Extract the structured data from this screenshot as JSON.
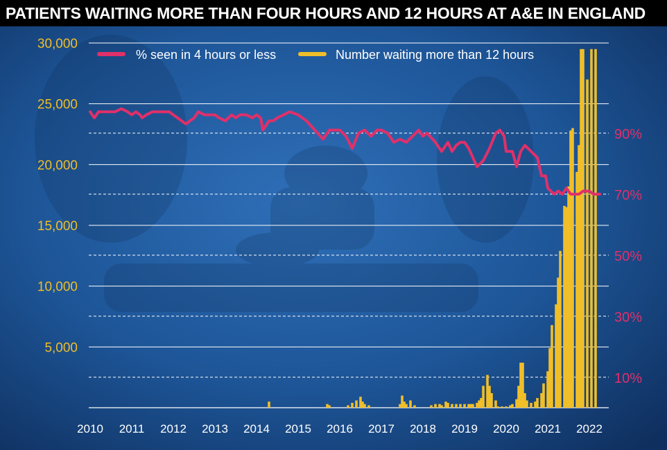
{
  "title": "PATIENTS WAITING MORE THAN FOUR HOURS AND 12 HOURS AT A&E IN ENGLAND",
  "colors": {
    "line": "#e0306a",
    "bars": "#f0be28",
    "left_axis": "#f0be28",
    "right_axis": "#e0306a",
    "background": "#1b4f8a"
  },
  "chart_data": {
    "type": "bar+line",
    "title": "PATIENTS WAITING MORE THAN FOUR HOURS AND 12 HOURS AT A&E IN ENGLAND",
    "legend": [
      "% seen in 4 hours or less",
      "Number waiting more than 12 hours"
    ],
    "legend_position": "top",
    "x_ticks": [
      "2010",
      "2011",
      "2012",
      "2013",
      "2014",
      "2015",
      "2016",
      "2017",
      "2018",
      "2019",
      "2020",
      "2021",
      "2022"
    ],
    "x_range": [
      2010.0,
      2022.3
    ],
    "left_axis": {
      "ticks": [
        "30,000",
        "25,000",
        "20,000",
        "15,000",
        "10,000",
        "5,000"
      ],
      "tick_values": [
        30000,
        25000,
        20000,
        15000,
        10000,
        5000
      ],
      "ylim": [
        0,
        30000
      ]
    },
    "right_axis": {
      "ticks": [
        "90%",
        "70%",
        "50%",
        "30%",
        "10%"
      ],
      "tick_values": [
        90,
        70,
        50,
        30,
        10
      ],
      "ylim": [
        0,
        100
      ]
    },
    "grid": true,
    "series": [
      {
        "name": "% seen in 4 hours or less",
        "kind": "line",
        "axis": "right",
        "x": [
          2010.0,
          2010.1,
          2010.2,
          2010.4,
          2010.6,
          2010.75,
          2010.9,
          2011.0,
          2011.1,
          2011.2,
          2011.25,
          2011.35,
          2011.5,
          2011.7,
          2011.9,
          2012.0,
          2012.1,
          2012.2,
          2012.3,
          2012.5,
          2012.6,
          2012.75,
          2012.9,
          2013.0,
          2013.1,
          2013.25,
          2013.4,
          2013.5,
          2013.6,
          2013.75,
          2013.9,
          2014.0,
          2014.1,
          2014.15,
          2014.3,
          2014.4,
          2014.5,
          2014.65,
          2014.8,
          2015.0,
          2015.2,
          2015.4,
          2015.6,
          2015.75,
          2015.9,
          2016.0,
          2016.15,
          2016.3,
          2016.45,
          2016.6,
          2016.75,
          2016.9,
          2017.0,
          2017.15,
          2017.3,
          2017.45,
          2017.6,
          2017.75,
          2017.9,
          2018.0,
          2018.1,
          2018.3,
          2018.45,
          2018.6,
          2018.7,
          2018.8,
          2018.9,
          2019.0,
          2019.1,
          2019.2,
          2019.3,
          2019.45,
          2019.6,
          2019.75,
          2019.85,
          2019.95,
          2020.0,
          2020.15,
          2020.25,
          2020.35,
          2020.45,
          2020.6,
          2020.75,
          2020.85,
          2020.95,
          2021.0,
          2021.15,
          2021.25,
          2021.35,
          2021.45,
          2021.55,
          2021.65,
          2021.75,
          2021.85,
          2022.0,
          2022.1,
          2022.25
        ],
        "values": [
          97,
          95,
          97,
          97,
          97,
          98,
          97,
          96,
          97,
          96,
          95,
          96,
          97,
          97,
          97,
          96,
          95,
          94,
          93,
          95,
          97,
          96,
          96,
          96,
          95,
          94,
          96,
          95,
          96,
          96,
          95,
          96,
          95,
          91,
          94,
          94,
          95,
          96,
          97,
          96,
          94,
          91,
          88,
          91,
          91,
          91,
          89,
          85,
          90,
          91,
          89,
          91,
          91,
          90,
          87,
          88,
          87,
          89,
          91,
          89,
          90,
          87,
          84,
          87,
          84,
          86,
          87,
          87,
          85,
          82,
          79,
          81,
          85,
          90,
          91,
          89,
          84,
          84,
          79,
          84,
          86,
          84,
          82,
          76,
          76,
          72,
          70,
          71,
          70,
          72,
          70,
          70,
          70,
          71,
          71,
          70,
          70
        ]
      },
      {
        "name": "Number waiting more than 12 hours",
        "kind": "bar",
        "axis": "left",
        "x": [
          2014.3,
          2015.7,
          2015.75,
          2016.2,
          2016.3,
          2016.4,
          2016.5,
          2016.55,
          2016.6,
          2016.7,
          2017.45,
          2017.5,
          2017.55,
          2017.6,
          2017.7,
          2017.8,
          2018.2,
          2018.3,
          2018.4,
          2018.45,
          2018.55,
          2018.6,
          2018.7,
          2018.8,
          2018.9,
          2019.0,
          2019.1,
          2019.15,
          2019.2,
          2019.3,
          2019.35,
          2019.4,
          2019.45,
          2019.55,
          2019.6,
          2019.65,
          2019.75,
          2019.8,
          2019.9,
          2020.0,
          2020.1,
          2020.15,
          2020.25,
          2020.3,
          2020.35,
          2020.4,
          2020.45,
          2020.5,
          2020.6,
          2020.7,
          2020.75,
          2020.85,
          2020.9,
          2021.0,
          2021.05,
          2021.1,
          2021.2,
          2021.25,
          2021.3,
          2021.4,
          2021.45,
          2021.5,
          2021.55,
          2021.6,
          2021.7,
          2021.75,
          2021.8,
          2021.85,
          2021.95,
          2022.05,
          2022.15
        ],
        "values": [
          500,
          300,
          200,
          200,
          400,
          600,
          900,
          500,
          300,
          200,
          300,
          1000,
          500,
          300,
          600,
          200,
          200,
          300,
          300,
          200,
          500,
          400,
          300,
          300,
          300,
          300,
          300,
          300,
          300,
          400,
          600,
          800,
          1800,
          2700,
          1800,
          1200,
          600,
          100,
          100,
          100,
          200,
          300,
          700,
          1800,
          3700,
          3700,
          1200,
          600,
          400,
          500,
          800,
          1200,
          2000,
          3000,
          4900,
          6800,
          8500,
          10700,
          12900,
          16600,
          16500,
          18200,
          22800,
          23000,
          19400,
          21600,
          29500,
          29500,
          27000,
          29500,
          29500
        ]
      }
    ]
  }
}
